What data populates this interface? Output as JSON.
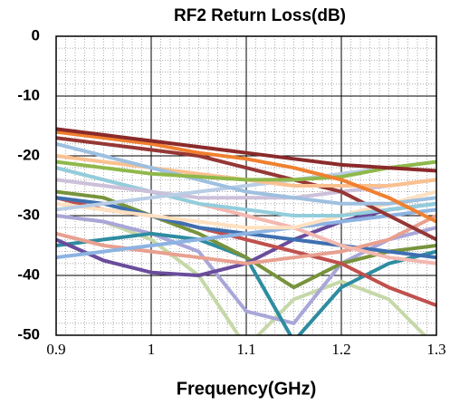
{
  "chart_data": {
    "type": "line",
    "title": "RF2 Return Loss(dB)",
    "x_label": "Frequency(GHz)",
    "x": [
      0.9,
      0.95,
      1.0,
      1.05,
      1.1,
      1.15,
      1.2,
      1.25,
      1.3
    ],
    "xlim": [
      0.9,
      1.3
    ],
    "xticks": [
      0.9,
      1,
      1.1,
      1.2,
      1.3
    ],
    "ylim": [
      -50,
      0
    ],
    "yticks": [
      0,
      -10,
      -20,
      -30,
      -40,
      -50
    ],
    "grid": true,
    "series": [
      {
        "color": "#c6d8a8",
        "values": [
          -30,
          -31,
          -34,
          -40,
          -52,
          -44,
          -41,
          -44,
          -52
        ]
      },
      {
        "color": "#a9a6d8",
        "values": [
          -30,
          -31,
          -33,
          -36,
          -46,
          -48,
          -38,
          -34,
          -32
        ]
      },
      {
        "color": "#2e8ca0",
        "values": [
          -35,
          -34,
          -33,
          -34,
          -37,
          -51,
          -42,
          -38,
          -36
        ]
      },
      {
        "color": "#77933c",
        "values": [
          -26,
          -27,
          -30,
          -33,
          -37,
          -42,
          -38,
          -36,
          -35
        ]
      },
      {
        "color": "#6a4c9c",
        "values": [
          -34,
          -37.5,
          -39.5,
          -40,
          -38,
          -34,
          -31,
          -29,
          -28
        ]
      },
      {
        "color": "#c0504d",
        "values": [
          -27,
          -29,
          -30,
          -32,
          -34,
          -36,
          -38,
          -42,
          -45
        ]
      },
      {
        "color": "#3e6fb0",
        "values": [
          -27,
          -28,
          -30,
          -32,
          -33,
          -34,
          -35,
          -36,
          -37
        ]
      },
      {
        "color": "#e8a090",
        "values": [
          -33,
          -35,
          -36,
          -37,
          -38,
          -37,
          -36,
          -34,
          -30
        ]
      },
      {
        "color": "#8db3e2",
        "values": [
          -37,
          -36,
          -35,
          -34,
          -33,
          -32,
          -31,
          -30,
          -29
        ]
      },
      {
        "color": "#f2b8b0",
        "values": [
          -22,
          -24,
          -26,
          -28,
          -30,
          -32,
          -35,
          -37,
          -38
        ]
      },
      {
        "color": "#ffe0c0",
        "values": [
          -28,
          -29,
          -30,
          -31,
          -32,
          -32,
          -30,
          -28,
          -26
        ]
      },
      {
        "color": "#92cddc",
        "values": [
          -22,
          -24,
          -26,
          -28,
          -29,
          -30,
          -30,
          -29,
          -28
        ]
      },
      {
        "color": "#ccc0da",
        "values": [
          -24,
          -25,
          -26,
          -27,
          -27,
          -27,
          -26,
          -25,
          -24
        ]
      },
      {
        "color": "#b9cde5",
        "values": [
          -29,
          -28,
          -27,
          -26,
          -25,
          -24,
          -23,
          -22,
          -21
        ]
      },
      {
        "color": "#953735",
        "values": [
          -17,
          -18,
          -19,
          -20,
          -22,
          -24,
          -26,
          -30,
          -34
        ]
      },
      {
        "color": "#fac090",
        "values": [
          -20,
          -21,
          -22,
          -23,
          -24,
          -25,
          -25,
          -25,
          -24
        ]
      },
      {
        "color": "#9ec0e0",
        "values": [
          -18,
          -20,
          -22,
          -24,
          -26,
          -27,
          -28,
          -28,
          -27
        ]
      },
      {
        "color": "#8fb84a",
        "values": [
          -21,
          -22,
          -23,
          -23.5,
          -24,
          -24,
          -23.5,
          -22,
          -21
        ]
      },
      {
        "color": "#f08030",
        "values": [
          -16,
          -17,
          -18,
          -19.5,
          -20.5,
          -22,
          -24,
          -27,
          -31
        ]
      },
      {
        "color": "#8b2a2a",
        "values": [
          -15.5,
          -16.5,
          -17.5,
          -18.5,
          -19.5,
          -20.5,
          -21.5,
          -22,
          -22.5
        ]
      }
    ]
  }
}
